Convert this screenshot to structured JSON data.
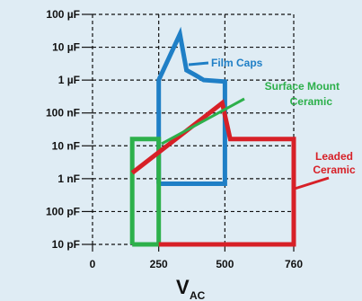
{
  "chart_data": {
    "type": "line",
    "x_axis": {
      "label": "V",
      "label_subscript": "AC",
      "ticks": [
        0,
        250,
        500,
        760
      ],
      "tick_labels": [
        "0",
        "250",
        "500",
        "760"
      ]
    },
    "y_axis": {
      "scale": "log",
      "tick_values": [
        1e-11,
        1e-10,
        1e-09,
        1e-08,
        1e-07,
        1e-06,
        1e-05,
        0.0001
      ],
      "tick_labels": [
        "10 pF",
        "100 pF",
        "1 nF",
        "10 nF",
        "100 nF",
        "1 µF",
        "10 µF",
        "100 µF"
      ]
    },
    "grid": true,
    "series": [
      {
        "name": "Film Caps",
        "color": "#1f7fc6",
        "points": [
          [
            250,
            7e-10
          ],
          [
            250,
            1e-06
          ],
          [
            330,
            2.5e-05
          ],
          [
            355,
            2e-06
          ],
          [
            390,
            1.4e-06
          ],
          [
            420,
            1e-06
          ],
          [
            500,
            9e-07
          ],
          [
            500,
            7e-10
          ],
          [
            250,
            7e-10
          ]
        ]
      },
      {
        "name": "Surface Mount Ceramic",
        "color": "#2db04b",
        "points": [
          [
            150,
            1e-11
          ],
          [
            150,
            1.6e-08
          ],
          [
            250,
            1.6e-08
          ],
          [
            250,
            1e-11
          ],
          [
            150,
            1e-11
          ]
        ]
      },
      {
        "name": "Leaded Ceramic",
        "color": "#d72027",
        "points": [
          [
            250,
            1e-11
          ],
          [
            760,
            1e-11
          ],
          [
            760,
            1.6e-08
          ],
          [
            520,
            1.6e-08
          ],
          [
            490,
            2e-07
          ],
          [
            150,
            1.5e-09
          ]
        ]
      }
    ],
    "annotations": [
      {
        "text": "Film Caps",
        "color": "#1f7fc6"
      },
      {
        "text": "Surface Mount",
        "text2": "Ceramic",
        "color": "#2db04b"
      },
      {
        "text": "Leaded",
        "text2": "Ceramic",
        "color": "#d72027"
      }
    ]
  }
}
